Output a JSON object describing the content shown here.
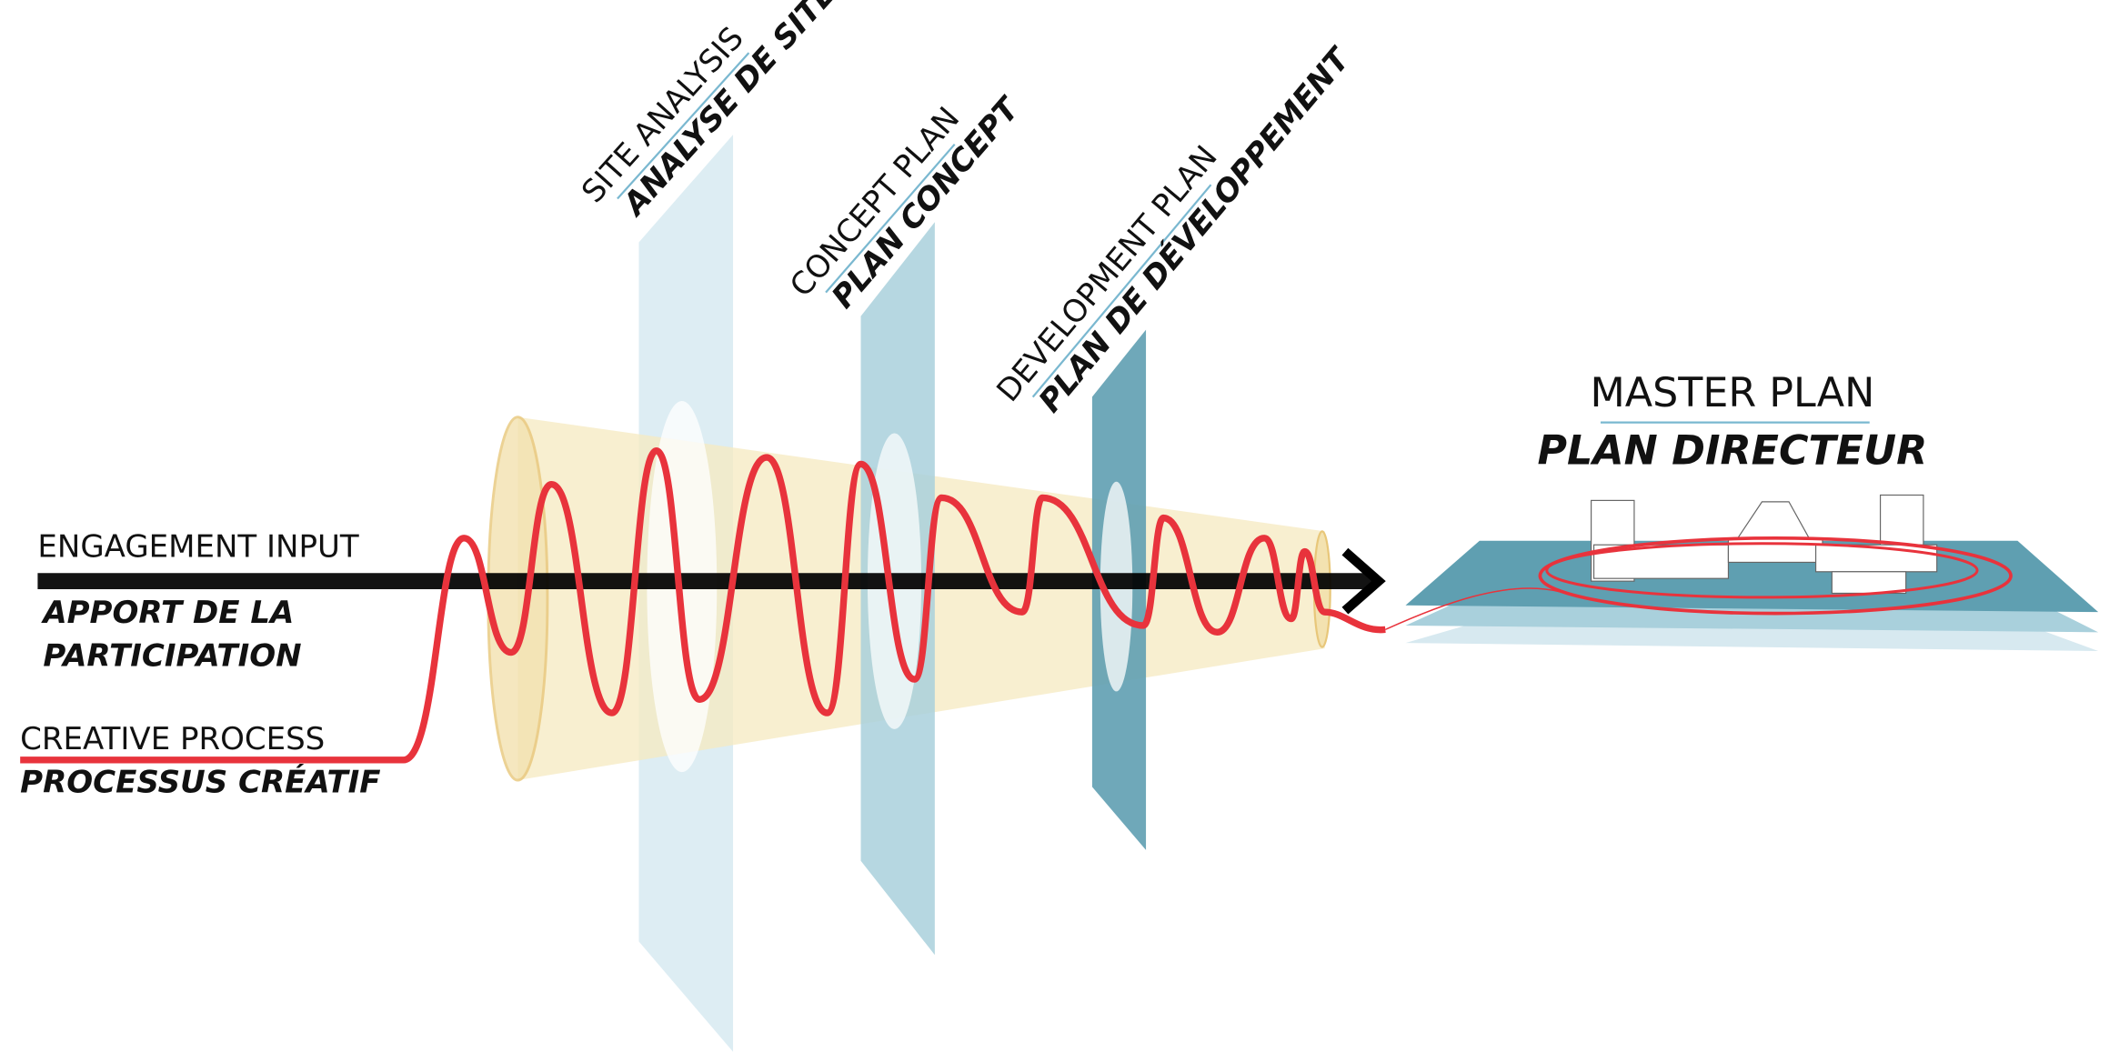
{
  "engagement_input": {
    "label": "ENGAGEMENT INPUT",
    "label_fr_lines": [
      "APPORT DE LA",
      "PARTICIPATION"
    ]
  },
  "creative_process": {
    "label": "CREATIVE PROCESS",
    "label_fr": "PROCESSUS CRÉATIF"
  },
  "stages": [
    {
      "label": "SITE ANALYSIS",
      "label_fr": "ANALYSE DE SITE"
    },
    {
      "label": "CONCEPT PLAN",
      "label_fr": "PLAN CONCEPT"
    },
    {
      "label": "DEVELOPMENT PLAN",
      "label_fr": "PLAN DE DÉVELOPPEMENT"
    }
  ],
  "outcome": {
    "label": "MASTER PLAN",
    "label_fr": "PLAN DIRECTEUR"
  }
}
